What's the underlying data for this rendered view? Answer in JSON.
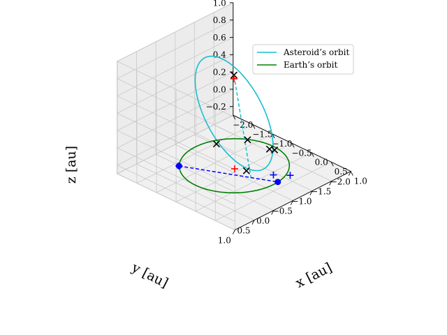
{
  "colors": {
    "asteroid": "#17becf",
    "earth": "#008000",
    "marker_black": "#000000",
    "marker_red": "#ff0000",
    "marker_blue": "#0000ff",
    "link_blue": "#0000ff",
    "pane_left": "#ececec",
    "pane_right": "#f5f5f5",
    "pane_floor": "#f0f0f0",
    "grid": "#c8c8c8"
  },
  "chart_data": {
    "type": "line",
    "projection": "3d",
    "xlabel": "x [au]",
    "ylabel": "y [au]",
    "zlabel": "z [au]",
    "xlim": [
      -2.0,
      1.0
    ],
    "ylim": [
      -2.0,
      1.0
    ],
    "zlim": [
      -0.3,
      1.0
    ],
    "xticks": [
      -2.0,
      -1.5,
      -1.0,
      -0.5,
      0.0,
      0.5,
      1.0
    ],
    "xtick_labels": [
      "−2.0",
      "−1.5",
      "−1.0",
      "−0.5",
      "0.0",
      "0.5",
      "1.0"
    ],
    "yticks": [
      -2.0,
      -1.5,
      -1.0,
      -0.5,
      0.0,
      0.5,
      1.0
    ],
    "ytick_labels": [
      "−2.0",
      "−1.5",
      "−1.0",
      "−0.5",
      "0.0",
      "0.5",
      "1.0"
    ],
    "zticks": [
      -0.2,
      0.0,
      0.2,
      0.4,
      0.6,
      0.8,
      1.0
    ],
    "ztick_labels": [
      "−0.2",
      "0.0",
      "0.2",
      "0.4",
      "0.6",
      "0.8",
      "1.0"
    ],
    "grid": true,
    "legend": {
      "placement": "top-right",
      "entries": [
        "Asteroid’s orbit",
        "Earth’s orbit"
      ]
    },
    "series": [
      {
        "name": "Asteroid’s orbit",
        "kind": "ellipse",
        "center": [
          -0.35,
          -0.35,
          0.45
        ],
        "u": [
          1.05,
          1.05,
          -0.08
        ],
        "v": [
          -0.5,
          0.5,
          0.38
        ],
        "color": "#17becf"
      },
      {
        "name": "Earth’s orbit",
        "kind": "ellipse",
        "center": [
          0.0,
          0.0,
          0.0
        ],
        "u": [
          1.0,
          0.0,
          0.0
        ],
        "v": [
          0.0,
          1.0,
          0.0
        ],
        "color": "#008000"
      }
    ],
    "dashed_lines": [
      {
        "from": [
          0.77,
          0.35,
          0.1
        ],
        "to": [
          -0.65,
          -0.65,
          0.76
        ],
        "color": "#17becf"
      },
      {
        "from": [
          -0.72,
          0.7,
          0.0
        ],
        "to": [
          0.99,
          -0.12,
          0.0
        ],
        "color": "#0000ff"
      }
    ],
    "points": [
      {
        "marker": "x",
        "color": "#000000",
        "xyz": [
          -0.65,
          -0.65,
          0.76
        ]
      },
      {
        "marker": "x",
        "color": "#000000",
        "xyz": [
          -0.8,
          -0.35,
          0.0
        ]
      },
      {
        "marker": "x",
        "color": "#000000",
        "xyz": [
          -0.5,
          -0.85,
          0.0
        ]
      },
      {
        "marker": "x",
        "color": "#000000",
        "xyz": [
          0.03,
          -0.88,
          0.0
        ]
      },
      {
        "marker": "x",
        "color": "#000000",
        "xyz": [
          0.12,
          -0.92,
          0.0
        ]
      },
      {
        "marker": "x",
        "color": "#000000",
        "xyz": [
          0.85,
          0.55,
          0.25
        ]
      },
      {
        "marker": "+",
        "color": "#ff0000",
        "xyz": [
          -0.6,
          -0.6,
          0.74
        ]
      },
      {
        "marker": "+",
        "color": "#ff0000",
        "xyz": [
          0.6,
          0.6,
          0.23
        ]
      },
      {
        "marker": "+",
        "color": "#ff0000",
        "xyz": [
          -0.72,
          0.7,
          0.0
        ]
      },
      {
        "marker": "o",
        "color": "#0000ff",
        "xyz": [
          -0.72,
          0.7,
          0.0
        ]
      },
      {
        "marker": "o",
        "color": "#0000ff",
        "xyz": [
          0.99,
          -0.12,
          0.0
        ]
      },
      {
        "marker": "+",
        "color": "#0000ff",
        "xyz": [
          -0.72,
          0.7,
          0.0
        ]
      },
      {
        "marker": "+",
        "color": "#0000ff",
        "xyz": [
          0.75,
          -0.25,
          0.0
        ]
      },
      {
        "marker": "+",
        "color": "#0000ff",
        "xyz": [
          0.98,
          -0.45,
          0.0
        ]
      }
    ]
  }
}
